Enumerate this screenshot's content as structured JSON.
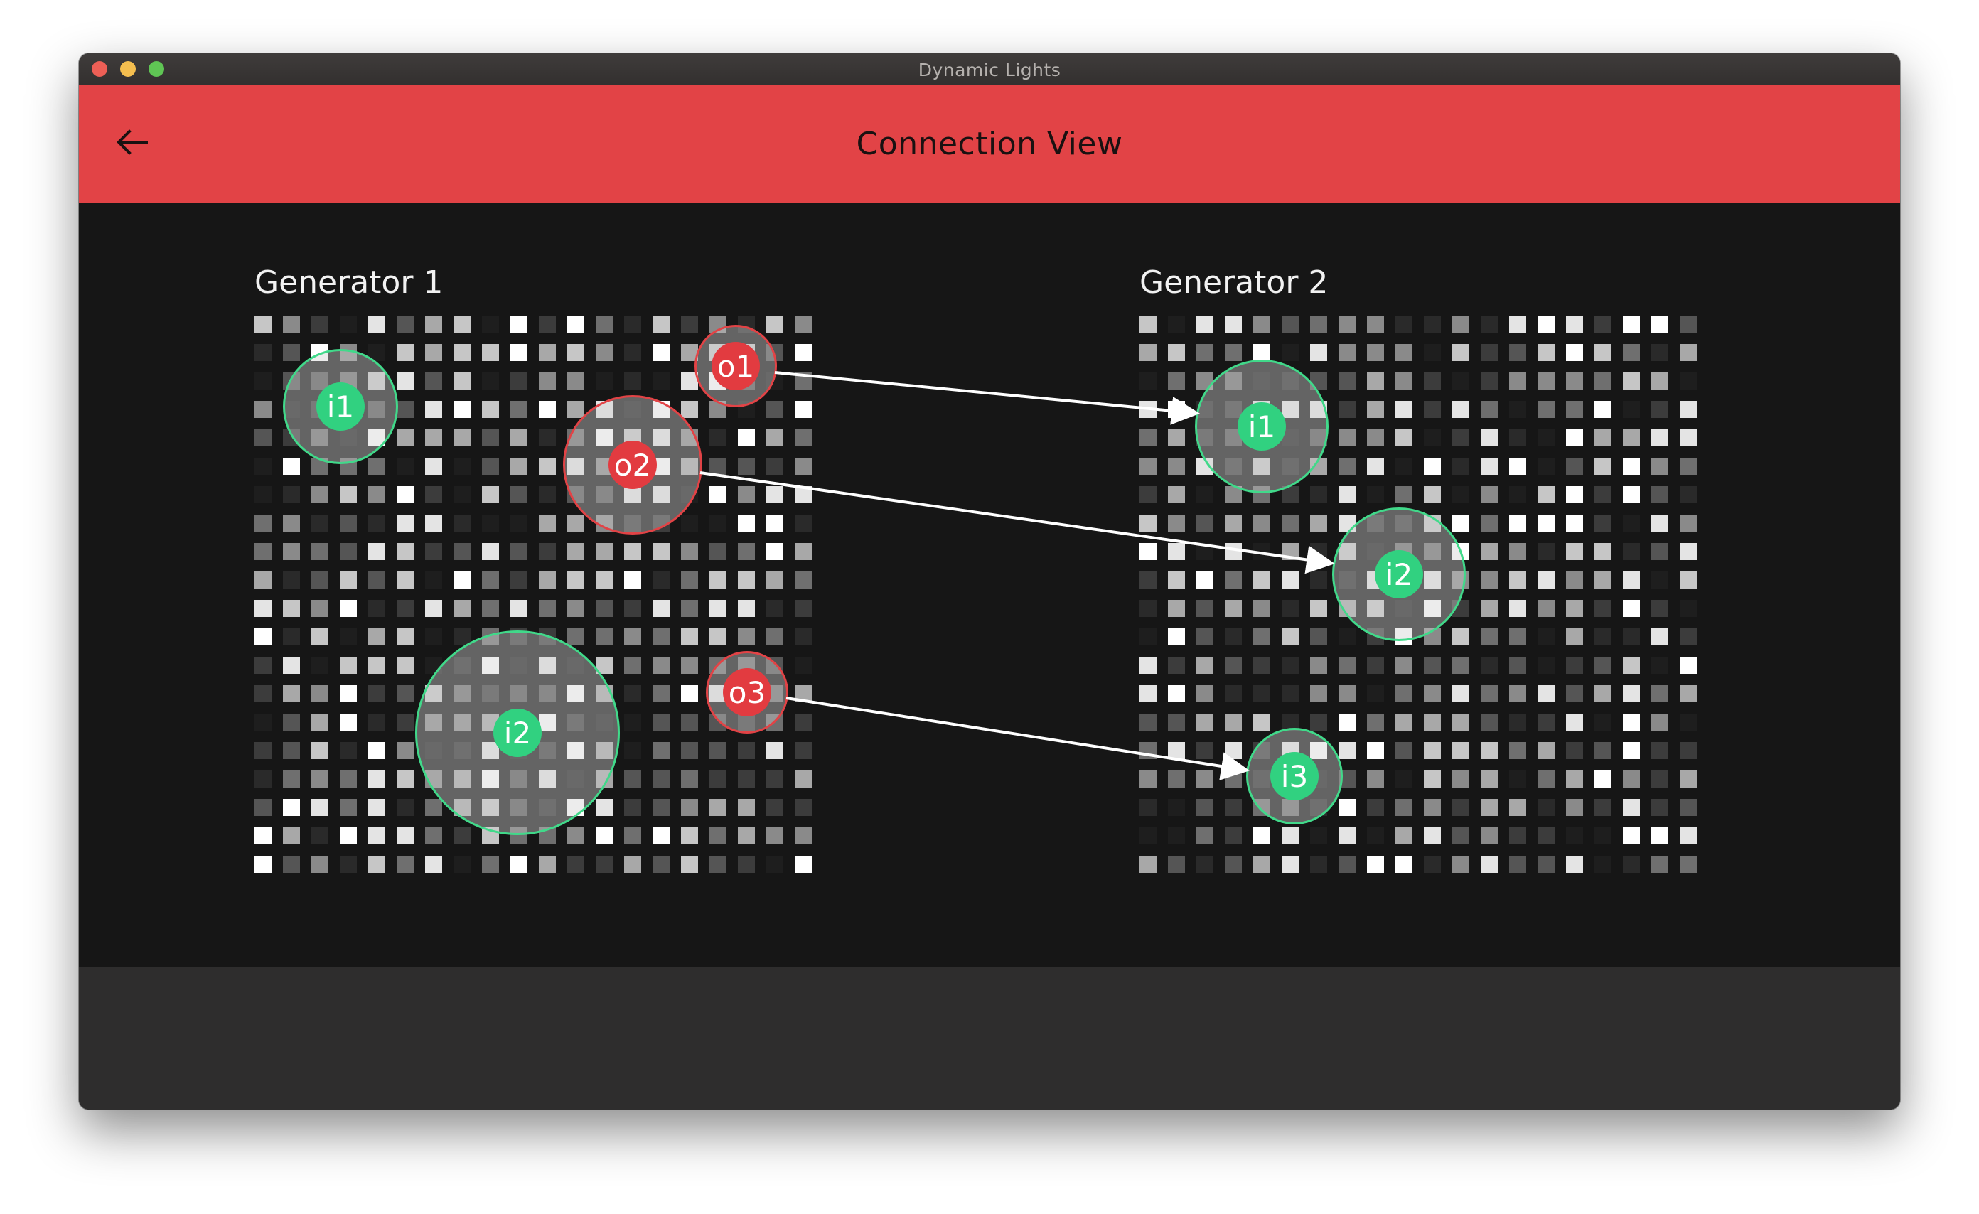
{
  "window": {
    "title": "Dynamic Lights"
  },
  "appbar": {
    "title": "Connection View",
    "back_icon": "arrow-left-icon"
  },
  "colors": {
    "accent": "#e24346",
    "input_port": "#31d180",
    "output_port": "#e23b40",
    "background": "#161616",
    "footer": "#2e2d2d"
  },
  "generators": [
    {
      "title": "Generator 1",
      "ports": [
        {
          "label": "i1",
          "kind": "input"
        },
        {
          "label": "i2",
          "kind": "input"
        },
        {
          "label": "o1",
          "kind": "output"
        },
        {
          "label": "o2",
          "kind": "output"
        },
        {
          "label": "o3",
          "kind": "output"
        }
      ]
    },
    {
      "title": "Generator 2",
      "ports": [
        {
          "label": "i1",
          "kind": "input"
        },
        {
          "label": "i2",
          "kind": "input"
        },
        {
          "label": "i3",
          "kind": "input"
        }
      ]
    }
  ],
  "connections": [
    {
      "from": "Generator 1 o1",
      "to": "Generator 2 i1"
    },
    {
      "from": "Generator 1 o2",
      "to": "Generator 2 i2"
    },
    {
      "from": "Generator 1 o3",
      "to": "Generator 2 i3"
    }
  ]
}
